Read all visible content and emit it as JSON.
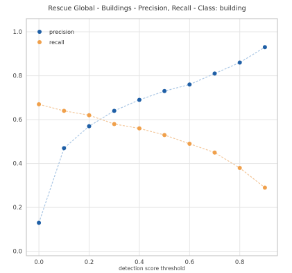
{
  "chart_data": {
    "type": "line",
    "title": "Rescue Global - Buildings - Precision, Recall - Class: building",
    "xlabel": "detection score threshold",
    "ylabel": "",
    "x": [
      0.0,
      0.1,
      0.2,
      0.3,
      0.4,
      0.5,
      0.6,
      0.7,
      0.8,
      0.9
    ],
    "xlim": [
      -0.05,
      0.95
    ],
    "ylim": [
      -0.02,
      1.06
    ],
    "xticks": [
      0.0,
      0.2,
      0.4,
      0.6,
      0.8
    ],
    "xtick_labels": [
      "0.0",
      "0.2",
      "0.4",
      "0.6",
      "0.8"
    ],
    "yticks": [
      0.0,
      0.2,
      0.4,
      0.6,
      0.8,
      1.0
    ],
    "ytick_labels": [
      "0.0",
      "0.2",
      "0.4",
      "0.6",
      "0.8",
      "1.0"
    ],
    "grid": true,
    "legend": "top-left",
    "series": [
      {
        "name": "precision",
        "color": "#1f5fa6",
        "line_color": "#a9c6e4",
        "values": [
          0.13,
          0.47,
          0.57,
          0.64,
          0.69,
          0.73,
          0.76,
          0.81,
          0.86,
          0.93
        ]
      },
      {
        "name": "recall",
        "color": "#f0a04b",
        "line_color": "#f3c79a",
        "values": [
          0.67,
          0.64,
          0.62,
          0.58,
          0.56,
          0.53,
          0.49,
          0.45,
          0.38,
          0.29
        ]
      }
    ]
  }
}
